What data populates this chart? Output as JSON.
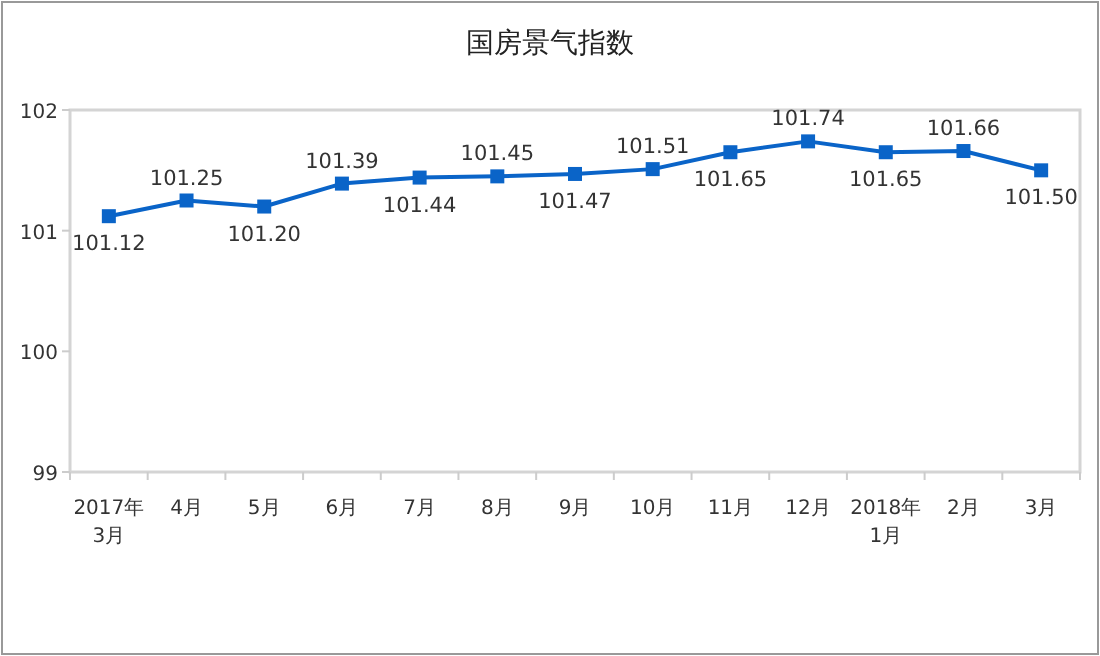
{
  "chart_data": {
    "type": "line",
    "title": "国房景气指数",
    "categories": [
      "2017年\n3月",
      "4月",
      "5月",
      "6月",
      "7月",
      "8月",
      "9月",
      "10月",
      "11月",
      "12月",
      "2018年\n1月",
      "2月",
      "3月"
    ],
    "series": [
      {
        "color": "#0a64c8",
        "values": [
          101.12,
          101.25,
          101.2,
          101.39,
          101.44,
          101.45,
          101.47,
          101.51,
          101.65,
          101.74,
          101.65,
          101.66,
          101.5
        ],
        "value_labels": [
          "101.12",
          "101.25",
          "101.20",
          "101.39",
          "101.44",
          "101.45",
          "101.47",
          "101.51",
          "101.65",
          "101.74",
          "101.65",
          "101.66",
          "101.50"
        ]
      }
    ],
    "ylim": [
      99,
      102
    ],
    "yticks": [
      99,
      100,
      101,
      102
    ],
    "grid": false,
    "marker": "square",
    "line_style": "solid"
  }
}
